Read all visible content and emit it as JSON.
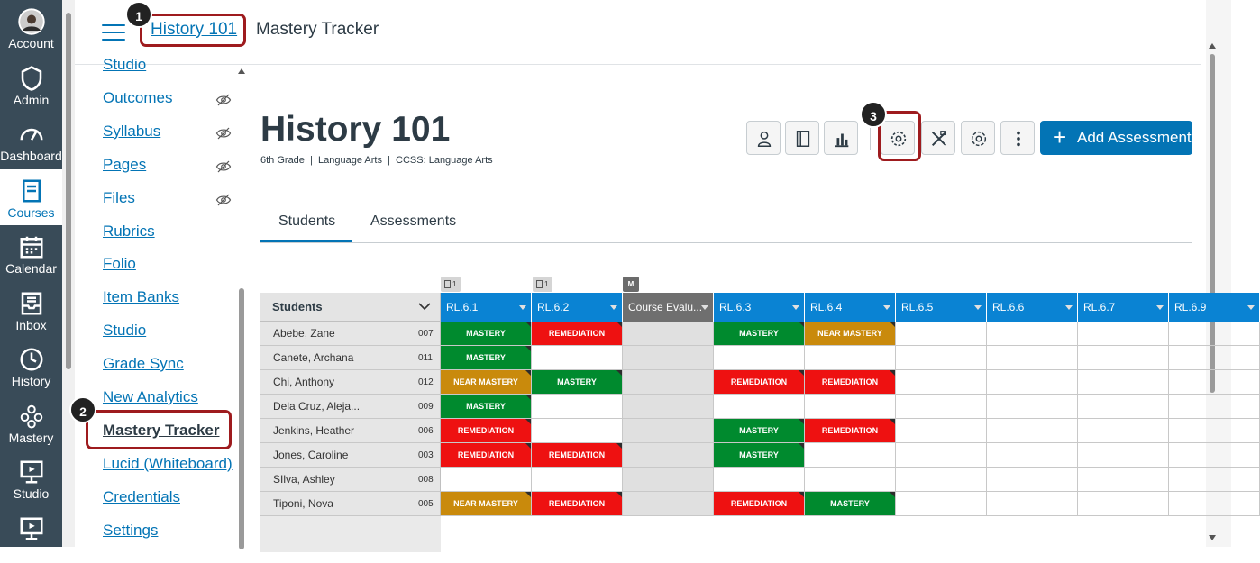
{
  "global_nav": [
    {
      "label": "Account",
      "icon": "avatar-icon"
    },
    {
      "label": "Admin",
      "icon": "admin-shield-icon"
    },
    {
      "label": "Dashboard",
      "icon": "dashboard-icon"
    },
    {
      "label": "Courses",
      "icon": "courses-book-icon",
      "active": true
    },
    {
      "label": "Calendar",
      "icon": "calendar-icon"
    },
    {
      "label": "Inbox",
      "icon": "inbox-icon"
    },
    {
      "label": "History",
      "icon": "history-clock-icon"
    },
    {
      "label": "Mastery",
      "icon": "mastery-icon"
    },
    {
      "label": "Studio",
      "icon": "studio-icon"
    },
    {
      "label": "",
      "icon": "studio-icon"
    }
  ],
  "header": {
    "crumb_course": "History 101",
    "crumb_page": "Mastery Tracker"
  },
  "course_nav": [
    {
      "label": "Studio",
      "hidden": false
    },
    {
      "label": "Outcomes",
      "hidden": true
    },
    {
      "label": "Syllabus",
      "hidden": true
    },
    {
      "label": "Pages",
      "hidden": true
    },
    {
      "label": "Files",
      "hidden": true
    },
    {
      "label": "Rubrics",
      "hidden": false
    },
    {
      "label": "Folio",
      "hidden": false
    },
    {
      "label": "Item Banks",
      "hidden": false
    },
    {
      "label": "Studio",
      "hidden": false
    },
    {
      "label": "Grade Sync",
      "hidden": false
    },
    {
      "label": "New Analytics",
      "hidden": false
    },
    {
      "label": "Mastery Tracker",
      "hidden": false,
      "current": true
    },
    {
      "label": "Lucid (Whiteboard)",
      "hidden": false
    },
    {
      "label": "Credentials",
      "hidden": false
    },
    {
      "label": "Settings",
      "hidden": false
    }
  ],
  "page": {
    "title": "History 101",
    "subtitle": "6th Grade  |  Language Arts  |  CCSS: Language Arts",
    "add_button": "Add Assessment",
    "toolbar_icons": [
      "student-view-icon",
      "gradebook-icon",
      "chart-icon",
      "sync-wheel-icon",
      "tools-icon",
      "settings-gear-icon",
      "more-options-icon"
    ]
  },
  "tabs": [
    "Students",
    "Assessments"
  ],
  "badges": [
    {
      "text": "1",
      "type": "gray"
    },
    {
      "text": "1",
      "type": "gray"
    },
    {
      "text": "M",
      "type": "dark"
    }
  ],
  "table": {
    "students_header": "Students",
    "columns": [
      "RL.6.1",
      "RL.6.2",
      "Course Evalu...",
      "RL.6.3",
      "RL.6.4",
      "RL.6.5",
      "RL.6.6",
      "RL.6.7",
      "RL.6.9"
    ],
    "rows": [
      {
        "name": "Abebe, Zane",
        "id": "007",
        "cells": [
          "MASTERY",
          "REMEDIATION",
          "",
          "MASTERY",
          "NEAR MASTERY",
          "",
          "",
          "",
          ""
        ]
      },
      {
        "name": "Canete, Archana",
        "id": "011",
        "cells": [
          "MASTERY",
          "",
          "",
          "",
          "",
          "",
          "",
          "",
          ""
        ]
      },
      {
        "name": "Chi, Anthony",
        "id": "012",
        "cells": [
          "NEAR MASTERY",
          "MASTERY",
          "",
          "REMEDIATION",
          "REMEDIATION",
          "",
          "",
          "",
          ""
        ]
      },
      {
        "name": "Dela Cruz, Aleja...",
        "id": "009",
        "cells": [
          "MASTERY",
          "",
          "",
          "",
          "",
          "",
          "",
          "",
          ""
        ]
      },
      {
        "name": "Jenkins, Heather",
        "id": "006",
        "cells": [
          "REMEDIATION",
          "",
          "",
          "MASTERY",
          "REMEDIATION",
          "",
          "",
          "",
          ""
        ]
      },
      {
        "name": "Jones, Caroline",
        "id": "003",
        "cells": [
          "REMEDIATION",
          "REMEDIATION",
          "",
          "MASTERY",
          "",
          "",
          "",
          "",
          ""
        ]
      },
      {
        "name": "SIlva, Ashley",
        "id": "008",
        "cells": [
          "",
          "",
          "",
          "",
          "",
          "",
          "",
          "",
          ""
        ]
      },
      {
        "name": "Tiponi, Nova",
        "id": "005",
        "cells": [
          "NEAR MASTERY",
          "REMEDIATION",
          "",
          "REMEDIATION",
          "MASTERY",
          "",
          "",
          "",
          ""
        ]
      }
    ]
  },
  "status_colors": {
    "MASTERY": "#008a2e",
    "REMEDIATION": "#ee1111",
    "NEAR MASTERY": "#c98a0c"
  },
  "callouts": [
    "1",
    "2",
    "3"
  ]
}
